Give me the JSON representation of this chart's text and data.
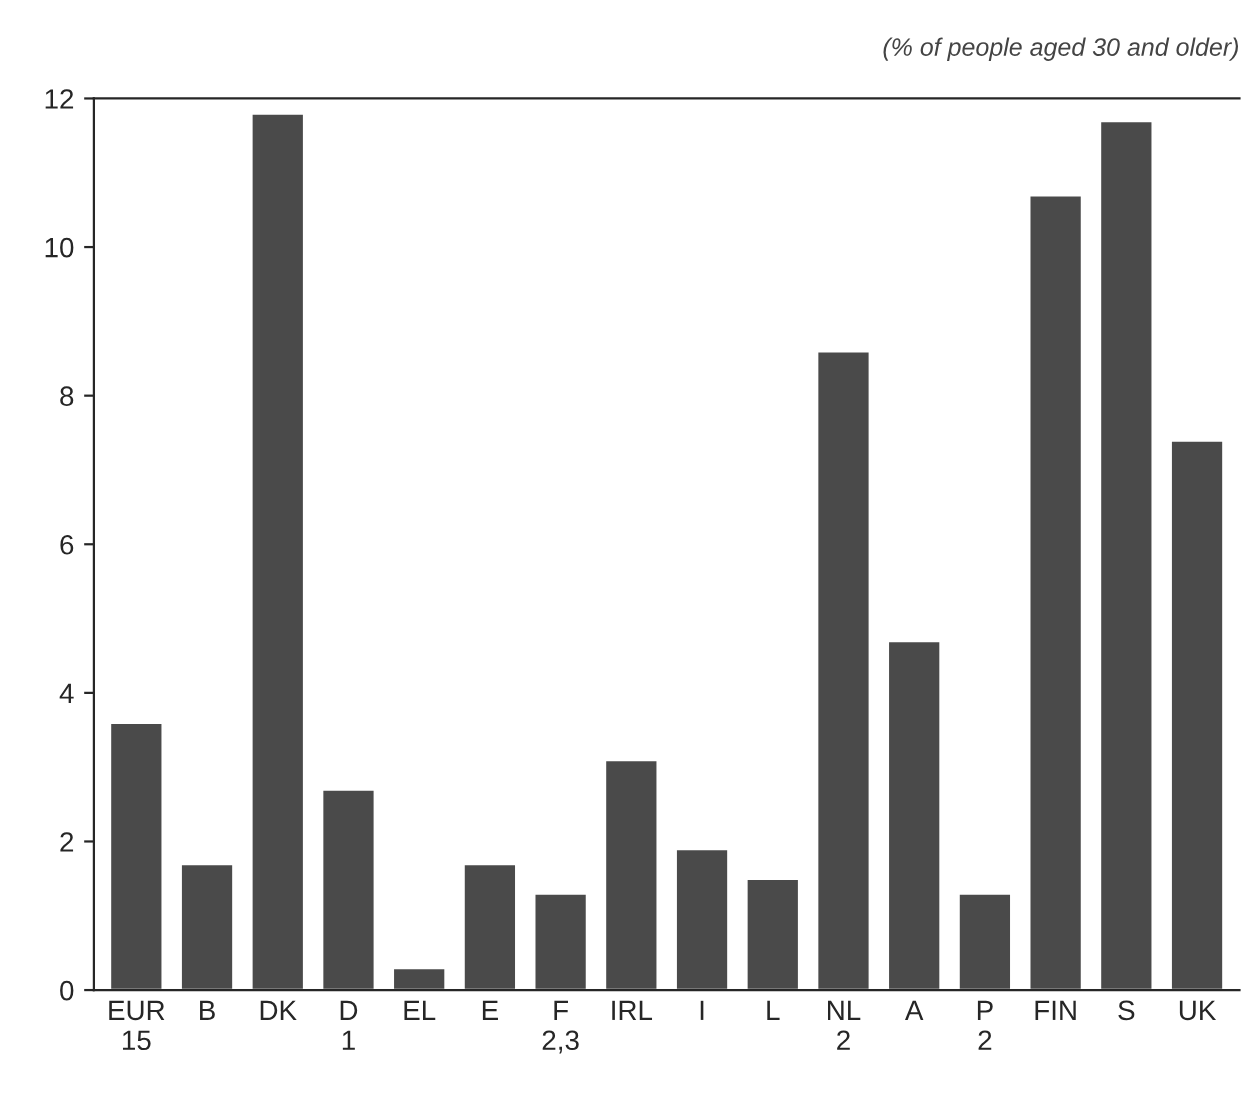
{
  "chart_data": {
    "type": "bar",
    "categories": [
      "EUR\n15",
      "B",
      "DK",
      "D\n1",
      "EL",
      "E",
      "F\n2,3",
      "IRL",
      "I",
      "L",
      "NL\n2",
      "A",
      "P\n2",
      "FIN",
      "S",
      "UK"
    ],
    "values": [
      3.6,
      1.7,
      11.8,
      2.7,
      0.3,
      1.7,
      1.3,
      3.1,
      1.9,
      1.5,
      8.6,
      4.7,
      1.3,
      10.7,
      11.7,
      7.4
    ],
    "color": "#4a4a4a",
    "ylim": [
      0,
      12
    ],
    "yticks": [
      0,
      2,
      4,
      6,
      8,
      10,
      12
    ],
    "annotations": [
      "(% of people aged 30 and older)"
    ]
  }
}
